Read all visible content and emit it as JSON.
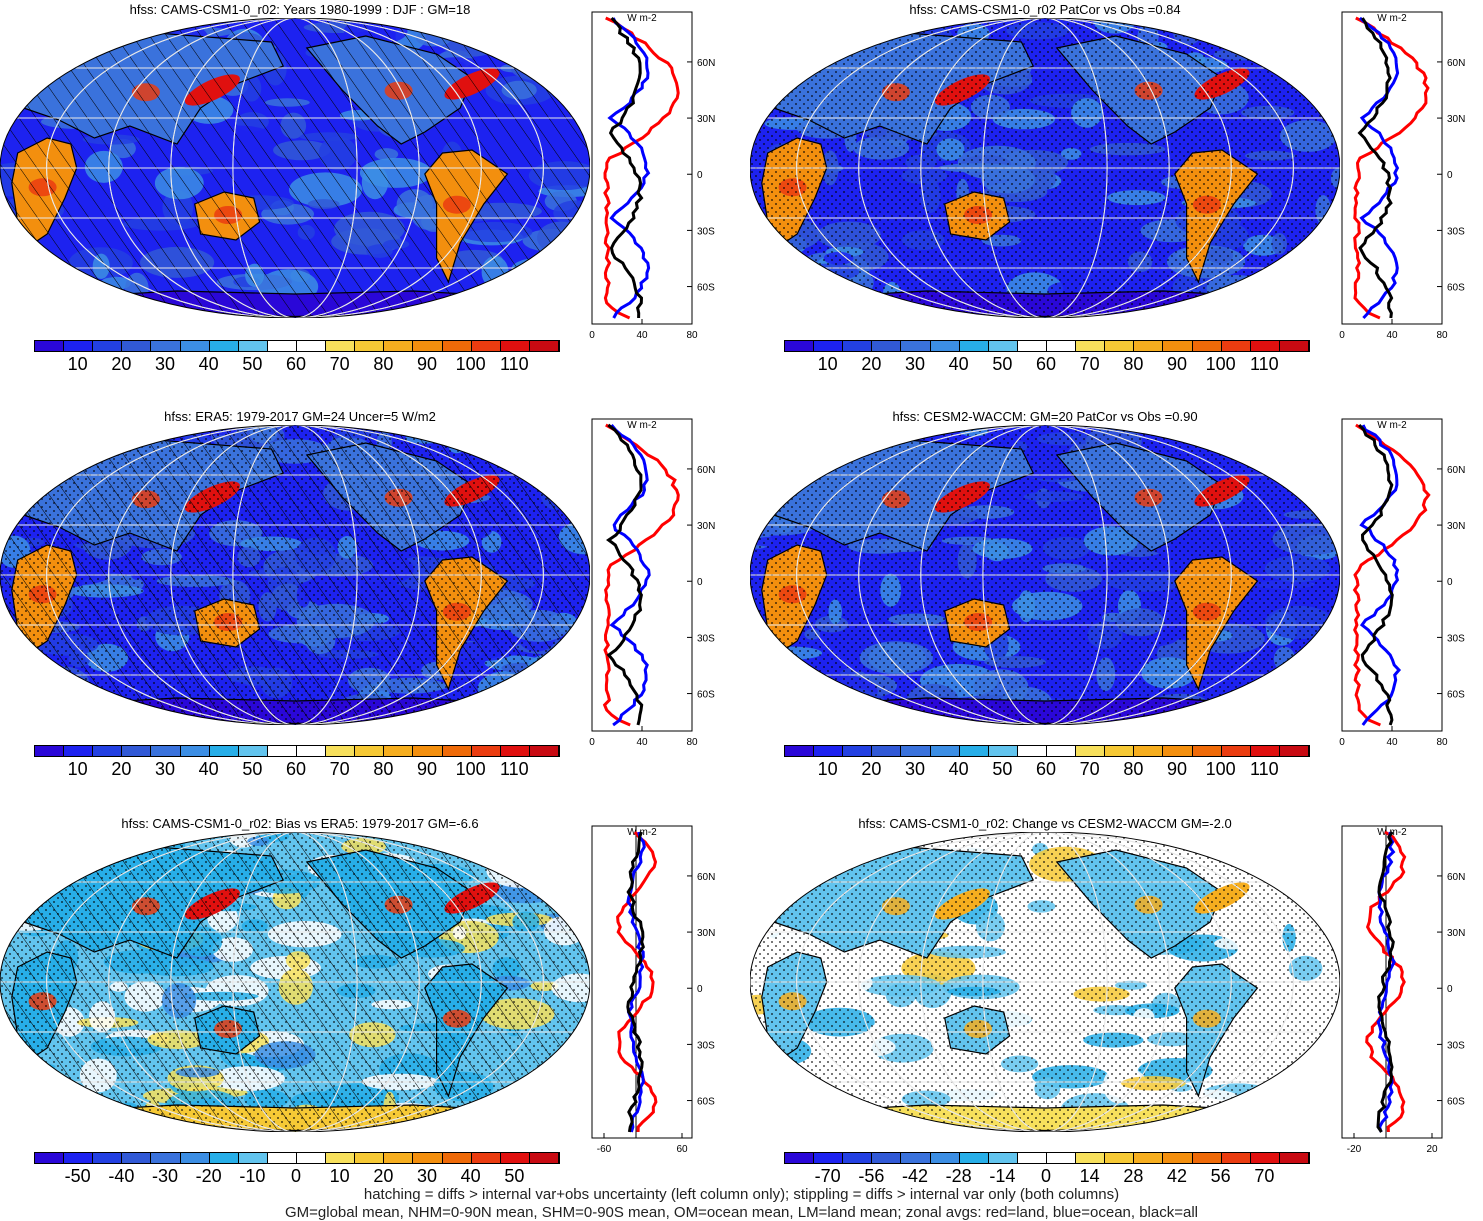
{
  "chart_data": [
    {
      "type": "heatmap",
      "title": "hfss: CAMS-CSM1-0_r02: Years 1980-1999 : DJF : GM=18",
      "colorbar": {
        "labels": [
          "10",
          "20",
          "30",
          "40",
          "50",
          "60",
          "70",
          "80",
          "90",
          "100",
          "110"
        ]
      },
      "zonal": {
        "xticks": [
          "0",
          "40",
          "80"
        ],
        "yticks": [
          "60N",
          "30N",
          "0",
          "30S",
          "60S"
        ],
        "units": "W m-2"
      },
      "style": "full",
      "hatch": true,
      "stipple": false
    },
    {
      "type": "heatmap",
      "title": "hfss: CAMS-CSM1-0_r02 PatCor vs Obs =0.84",
      "colorbar": {
        "labels": [
          "10",
          "20",
          "30",
          "40",
          "50",
          "60",
          "70",
          "80",
          "90",
          "100",
          "110"
        ]
      },
      "zonal": {
        "xticks": [
          "0",
          "40",
          "80"
        ],
        "yticks": [
          "60N",
          "30N",
          "0",
          "30S",
          "60S"
        ],
        "units": "W m-2"
      },
      "style": "full",
      "hatch": false,
      "stipple": true
    },
    {
      "type": "heatmap",
      "title": "hfss: ERA5: 1979-2017 GM=24 Uncer=5 W/m2",
      "colorbar": {
        "labels": [
          "10",
          "20",
          "30",
          "40",
          "50",
          "60",
          "70",
          "80",
          "90",
          "100",
          "110"
        ]
      },
      "zonal": {
        "xticks": [
          "0",
          "40",
          "80"
        ],
        "yticks": [
          "60N",
          "30N",
          "0",
          "30S",
          "60S"
        ],
        "units": "W m-2"
      },
      "style": "full",
      "hatch": true,
      "stipple": true
    },
    {
      "type": "heatmap",
      "title": "hfss: CESM2-WACCM: GM=20 PatCor vs Obs =0.90",
      "colorbar": {
        "labels": [
          "10",
          "20",
          "30",
          "40",
          "50",
          "60",
          "70",
          "80",
          "90",
          "100",
          "110"
        ]
      },
      "zonal": {
        "xticks": [
          "0",
          "40",
          "80"
        ],
        "yticks": [
          "60N",
          "30N",
          "0",
          "30S",
          "60S"
        ],
        "units": "W m-2"
      },
      "style": "full",
      "hatch": false,
      "stipple": true
    },
    {
      "type": "heatmap",
      "title": "hfss: CAMS-CSM1-0_r02: Bias vs ERA5: 1979-2017 GM=-6.6",
      "colorbar": {
        "labels": [
          "-50",
          "-40",
          "-30",
          "-20",
          "-10",
          "0",
          "10",
          "20",
          "30",
          "40",
          "50"
        ]
      },
      "zonal": {
        "xticks": [
          "-60",
          "60"
        ],
        "yticks": [
          "60N",
          "30N",
          "0",
          "30S",
          "60S"
        ],
        "units": "W m-2"
      },
      "style": "bias",
      "hatch": true,
      "stipple": true
    },
    {
      "type": "heatmap",
      "title": "hfss: CAMS-CSM1-0_r02: Change vs CESM2-WACCM GM=-2.0",
      "colorbar": {
        "labels": [
          "-70",
          "-56",
          "-42",
          "-28",
          "-14",
          "0",
          "14",
          "28",
          "42",
          "56",
          "70"
        ]
      },
      "zonal": {
        "xticks": [
          "-20",
          "20"
        ],
        "yticks": [
          "60N",
          "30N",
          "0",
          "30S",
          "60S"
        ],
        "units": "W m-2"
      },
      "style": "change",
      "hatch": false,
      "stipple": true
    }
  ],
  "colors": {
    "levels": [
      "#2a07d8",
      "#1d22f0",
      "#2340e2",
      "#3159d6",
      "#3a72dc",
      "#3c8ee4",
      "#27aee8",
      "#62c4ee",
      "#ffffff",
      "#ffffff",
      "#f7e05c",
      "#f6c935",
      "#f6ae1f",
      "#f38f0e",
      "#ef6a08",
      "#ea3c10",
      "#e0100f",
      "#c80a12"
    ],
    "land": "#e05020",
    "ocean": "#3a4fd8",
    "black": "#000000",
    "red": "#ff0000",
    "blue": "#0000ff"
  },
  "footnote": {
    "line1": "hatching = diffs > internal var+obs uncertainty (left column only); stippling = diffs > internal var only (both columns)",
    "line2": "GM=global mean, NHM=0-90N mean, SHM=0-90S mean, OM=ocean mean, LM=land mean; zonal avgs: red=land, blue=ocean, black=all"
  }
}
